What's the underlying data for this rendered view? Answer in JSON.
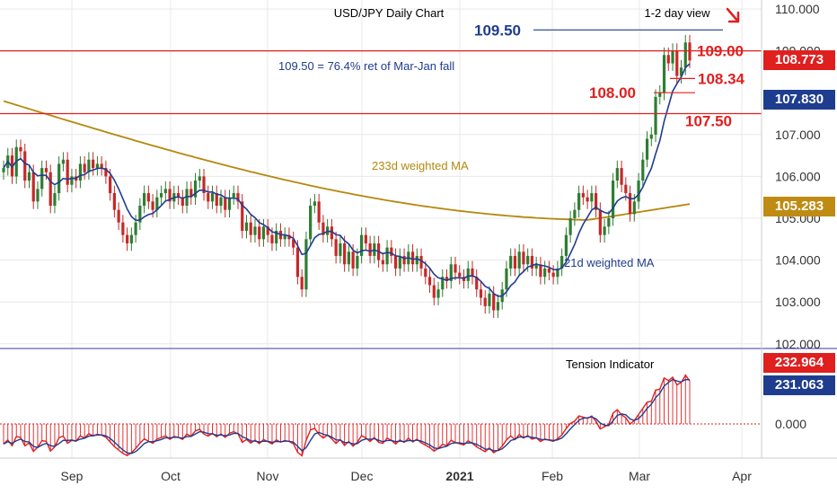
{
  "chart_data": {
    "type": "candlestick",
    "title": "USD/JPY Daily Chart",
    "view_label": "1-2 day view",
    "view_direction": "down",
    "x_labels": [
      "Sep",
      "Oct",
      "Nov",
      "Dec",
      "2021",
      "Feb",
      "Mar",
      "Apr"
    ],
    "y_ticks": [
      "110.000",
      "109.000",
      "107.000",
      "106.000",
      "105.000",
      "104.000",
      "103.000",
      "102.000"
    ],
    "ylim": [
      101.9,
      110.3
    ],
    "indicator_ticks": [
      "0.000"
    ],
    "ohlc_closes": [
      106.2,
      106.5,
      106.0,
      106.7,
      106.6,
      105.9,
      106.1,
      105.4,
      105.7,
      106.2,
      106.1,
      105.3,
      105.6,
      106.3,
      106.4,
      105.8,
      106.0,
      105.9,
      106.3,
      106.1,
      106.4,
      106.2,
      106.3,
      106.2,
      106.0,
      105.6,
      105.2,
      104.9,
      104.6,
      104.4,
      104.6,
      104.9,
      105.3,
      105.6,
      105.4,
      105.2,
      105.5,
      105.6,
      105.7,
      105.4,
      105.6,
      105.5,
      105.3,
      105.7,
      105.5,
      105.9,
      106.0,
      105.6,
      105.4,
      105.6,
      105.3,
      105.5,
      105.2,
      105.5,
      105.6,
      105.4,
      104.7,
      104.9,
      104.6,
      104.8,
      104.5,
      104.8,
      104.6,
      104.4,
      104.7,
      104.5,
      104.6,
      104.5,
      104.3,
      103.6,
      103.3,
      104.5,
      105.3,
      105.4,
      104.9,
      104.6,
      104.8,
      104.5,
      104.1,
      104.4,
      103.9,
      104.2,
      103.8,
      104.1,
      104.6,
      104.4,
      104.1,
      104.4,
      104.0,
      103.9,
      104.3,
      104.1,
      103.8,
      104.1,
      103.9,
      104.2,
      103.9,
      104.1,
      103.8,
      103.6,
      103.4,
      103.1,
      103.3,
      103.6,
      103.5,
      103.9,
      103.7,
      103.6,
      103.5,
      103.8,
      103.6,
      103.3,
      103.1,
      102.9,
      103.2,
      102.8,
      103.0,
      103.3,
      103.8,
      104.1,
      103.8,
      104.2,
      103.9,
      104.1,
      103.8,
      103.9,
      103.6,
      103.8,
      103.7,
      103.6,
      103.8,
      104.1,
      104.6,
      105.0,
      105.2,
      105.6,
      105.5,
      105.4,
      105.6,
      105.2,
      104.6,
      104.8,
      105.0,
      105.9,
      106.2,
      105.8,
      105.6,
      105.1,
      105.4,
      105.9,
      106.4,
      106.9,
      107.0,
      107.9,
      108.0,
      108.9,
      108.7,
      109.0,
      108.4,
      108.6,
      109.2,
      108.77
    ],
    "levels": [
      {
        "label": "109.50",
        "value": 109.5,
        "color": "#1f3d8f"
      },
      {
        "label": "109.00",
        "value": 109.0,
        "color": "#e01f1f"
      },
      {
        "label": "108.34",
        "value": 108.34,
        "color": "#e01f1f"
      },
      {
        "label": "108.00",
        "value": 108.0,
        "color": "#e01f1f"
      },
      {
        "label": "107.50",
        "value": 107.5,
        "color": "#e01f1f"
      }
    ],
    "series": [
      {
        "name": "233d weighted MA",
        "color": "#b5880e",
        "last": 105.283
      },
      {
        "name": "21d weighted MA",
        "color": "#1f3d8f",
        "last": 107.83
      },
      {
        "name": "Tension Indicator",
        "color": "#e01f1f",
        "last_red": 232.964,
        "last_blue": 231.063
      }
    ],
    "annotation": "109.50 = 76.4% ret of Mar-Jan fall",
    "price_tags": [
      {
        "label": "108.773",
        "value": 108.773,
        "color": "#e01f1f"
      },
      {
        "label": "107.830",
        "value": 107.83,
        "color": "#1f3d8f"
      },
      {
        "label": "105.283",
        "value": 105.283,
        "color": "#c08b12"
      }
    ],
    "indicator_tags": [
      {
        "label": "232.964",
        "color": "#e01f1f"
      },
      {
        "label": "231.063",
        "color": "#1f3d8f"
      }
    ],
    "colors": {
      "up": "#2e7d32",
      "down": "#c62828",
      "grid": "#e8e8e8"
    }
  }
}
